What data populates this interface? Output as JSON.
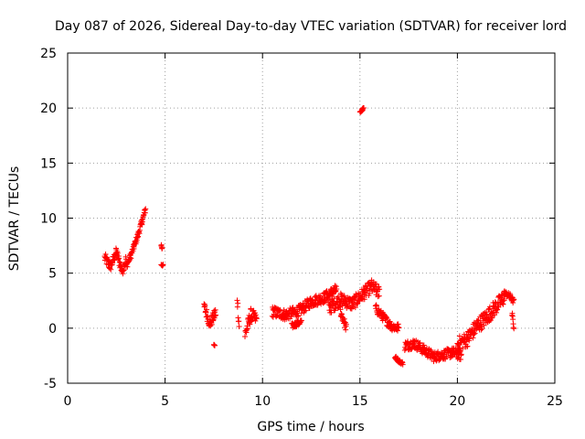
{
  "chart_data": {
    "type": "scatter",
    "title": "Day 087 of 2026, Sidereal Day-to-day VTEC variation (SDTVAR) for receiver lord",
    "xlabel": "GPS time / hours",
    "ylabel": "SDTVAR / TECUs",
    "xlim": [
      0,
      25
    ],
    "ylim": [
      -5,
      25
    ],
    "xticks": [
      0,
      5,
      10,
      15,
      20,
      25
    ],
    "yticks": [
      -5,
      0,
      5,
      10,
      15,
      20,
      25
    ],
    "grid": true,
    "marker": "+",
    "color": "#ff0000",
    "segments": [
      {
        "x": [
          1.9,
          2.2,
          2.5,
          2.8,
          3.0
        ],
        "y": [
          6.4,
          5.6,
          6.9,
          5.2,
          6.3
        ],
        "spread": 0.9
      },
      {
        "x": [
          3.0,
          3.2,
          3.4,
          3.6,
          3.8,
          4.0
        ],
        "y": [
          5.6,
          6.4,
          7.4,
          8.4,
          9.6,
          10.8
        ],
        "spread": 0.6
      },
      {
        "x": [
          4.8,
          4.85
        ],
        "y": [
          7.6,
          7.2
        ],
        "spread": 0.4
      },
      {
        "x": [
          4.8,
          4.9
        ],
        "y": [
          5.8,
          5.7
        ],
        "spread": 0.2
      },
      {
        "x": [
          7.0,
          7.3,
          7.6
        ],
        "y": [
          2.0,
          0.4,
          1.4
        ],
        "spread": 1.0
      },
      {
        "x": [
          7.5,
          7.55
        ],
        "y": [
          -1.5,
          -1.6
        ],
        "spread": 0.1
      },
      {
        "x": [
          8.7,
          8.8
        ],
        "y": [
          2.8,
          0.2
        ],
        "spread": 1.2
      },
      {
        "x": [
          9.1,
          9.4,
          9.7
        ],
        "y": [
          -0.6,
          1.2,
          0.8
        ],
        "spread": 1.2
      },
      {
        "x": [
          10.5,
          11.2,
          11.9,
          12.5,
          13.2,
          13.8
        ],
        "y": [
          1.5,
          1.2,
          1.6,
          2.4,
          2.8,
          3.5
        ],
        "spread": 1.0
      },
      {
        "x": [
          11.5,
          12.0
        ],
        "y": [
          0.2,
          0.6
        ],
        "spread": 0.5
      },
      {
        "x": [
          13.4,
          14.0,
          14.6,
          15.1,
          15.6,
          16.0
        ],
        "y": [
          1.8,
          2.6,
          2.2,
          3.0,
          3.8,
          3.2
        ],
        "spread": 1.2
      },
      {
        "x": [
          14.0,
          14.3
        ],
        "y": [
          1.5,
          0.0
        ],
        "spread": 0.8
      },
      {
        "x": [
          15.0,
          15.1,
          15.2
        ],
        "y": [
          19.6,
          19.8,
          20.0
        ],
        "spread": 0.2
      },
      {
        "x": [
          15.8,
          16.2,
          16.6,
          17.0
        ],
        "y": [
          1.8,
          1.0,
          0.2,
          0.0
        ],
        "spread": 0.8
      },
      {
        "x": [
          16.8,
          17.0,
          17.2
        ],
        "y": [
          -2.6,
          -3.0,
          -3.2
        ],
        "spread": 0.3
      },
      {
        "x": [
          17.3,
          17.8,
          18.3,
          18.8,
          19.3,
          19.8,
          20.2
        ],
        "y": [
          -1.6,
          -1.4,
          -2.0,
          -2.6,
          -2.4,
          -2.2,
          -2.5
        ],
        "spread": 0.9
      },
      {
        "x": [
          20.0,
          20.5,
          21.0,
          21.5,
          22.0,
          22.4
        ],
        "y": [
          -1.5,
          -1.0,
          0.2,
          1.0,
          2.0,
          2.8
        ],
        "spread": 1.4
      },
      {
        "x": [
          22.4,
          22.7,
          22.9
        ],
        "y": [
          3.2,
          2.9,
          2.4
        ],
        "spread": 0.5
      },
      {
        "x": [
          22.8,
          22.9
        ],
        "y": [
          1.3,
          0.1
        ],
        "spread": 0.6
      }
    ]
  }
}
